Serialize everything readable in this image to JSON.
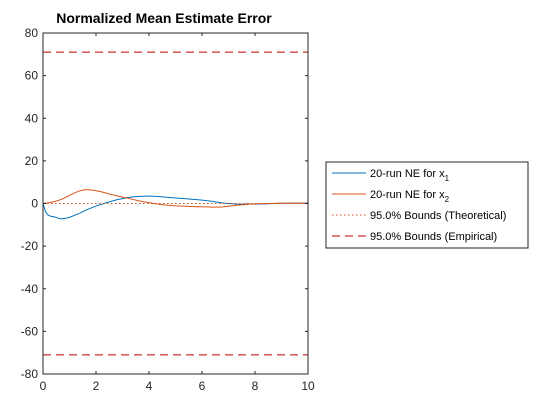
{
  "chart_data": {
    "type": "line",
    "title": "Normalized Mean Estimate Error",
    "xlabel": "",
    "ylabel": "",
    "xlim": [
      0,
      10
    ],
    "ylim": [
      -80,
      80
    ],
    "xticks": [
      0,
      2,
      4,
      6,
      8,
      10
    ],
    "xtick_labels": [
      "0",
      "2",
      "4",
      "6",
      "8",
      "10"
    ],
    "yticks": [
      -80,
      -60,
      -40,
      -20,
      0,
      20,
      40,
      60,
      80
    ],
    "ytick_labels": [
      "-80",
      "-60",
      "-40",
      "-20",
      "0",
      "20",
      "40",
      "60",
      "80"
    ],
    "grid": false,
    "legend_position": "outside-right",
    "series": [
      {
        "label_main": "20-run NE for x",
        "label_sub": "1",
        "color": "#0072BD",
        "style": "solid",
        "x": [
          0,
          0.1,
          0.2,
          0.3,
          0.4,
          0.5,
          0.6,
          0.7,
          0.8,
          0.9,
          1.0,
          1.2,
          1.4,
          1.6,
          1.8,
          2.0,
          2.2,
          2.4,
          2.6,
          2.8,
          3.0,
          3.2,
          3.4,
          3.6,
          3.8,
          4.0,
          4.2,
          4.4,
          4.6,
          4.8,
          5.0,
          5.2,
          5.4,
          5.6,
          5.8,
          6.0,
          6.2,
          6.4,
          6.6,
          6.8,
          7.0,
          7.2,
          7.4,
          7.6,
          7.8,
          8.0,
          8.5,
          9.0,
          9.5,
          10.0
        ],
        "y": [
          0,
          -4,
          -5.5,
          -6,
          -6.2,
          -6.5,
          -7,
          -7.2,
          -7,
          -6.8,
          -6.5,
          -5.5,
          -4.5,
          -3.2,
          -2.2,
          -1.2,
          -0.4,
          0.4,
          1.1,
          1.8,
          2.3,
          2.8,
          3.1,
          3.3,
          3.4,
          3.5,
          3.4,
          3.2,
          3.0,
          2.8,
          2.6,
          2.4,
          2.2,
          2.0,
          1.8,
          1.6,
          1.3,
          1.0,
          0.6,
          0.2,
          0,
          -0.2,
          -0.4,
          -0.3,
          -0.2,
          -0.3,
          -0.1,
          0.1,
          0.2,
          0.2
        ]
      },
      {
        "label_main": "20-run NE for x",
        "label_sub": "2",
        "color": "#D95319",
        "style": "solid",
        "x": [
          0,
          0.2,
          0.4,
          0.6,
          0.8,
          1.0,
          1.2,
          1.4,
          1.6,
          1.8,
          2.0,
          2.2,
          2.4,
          2.6,
          2.8,
          3.0,
          3.2,
          3.4,
          3.6,
          3.8,
          4.0,
          4.2,
          4.4,
          4.6,
          4.8,
          5.0,
          5.2,
          5.4,
          5.6,
          5.8,
          6.0,
          6.2,
          6.4,
          6.6,
          6.8,
          7.0,
          7.2,
          7.4,
          7.6,
          7.8,
          8.0,
          8.5,
          9.0,
          9.5,
          10.0
        ],
        "y": [
          0,
          0.3,
          0.8,
          1.5,
          2.5,
          3.8,
          5.0,
          6.0,
          6.5,
          6.4,
          6.0,
          5.5,
          4.8,
          4.2,
          3.6,
          3.0,
          2.5,
          1.9,
          1.3,
          0.8,
          0.4,
          0,
          -0.4,
          -0.7,
          -0.9,
          -1.1,
          -1.2,
          -1.3,
          -1.4,
          -1.5,
          -1.5,
          -1.6,
          -1.7,
          -1.7,
          -1.6,
          -1.3,
          -1.0,
          -0.7,
          -0.5,
          -0.3,
          -0.2,
          0,
          0.1,
          0.1,
          0.1
        ]
      },
      {
        "label_main": "95.0% Bounds (Theoretical)",
        "label_sub": "",
        "color": "#D95319",
        "style": "dotted",
        "x": [
          0,
          10
        ],
        "y": [
          0,
          0
        ]
      },
      {
        "label_main": "95.0% Bounds (Empirical)",
        "label_sub": "",
        "color": "#C00000",
        "style": "dashed",
        "x": [
          0,
          10
        ],
        "y": [
          71,
          71
        ],
        "y_mirror": [
          -71,
          -71
        ]
      }
    ],
    "baseline": {
      "color": "#000000",
      "style": "dotted",
      "y": 0
    }
  }
}
